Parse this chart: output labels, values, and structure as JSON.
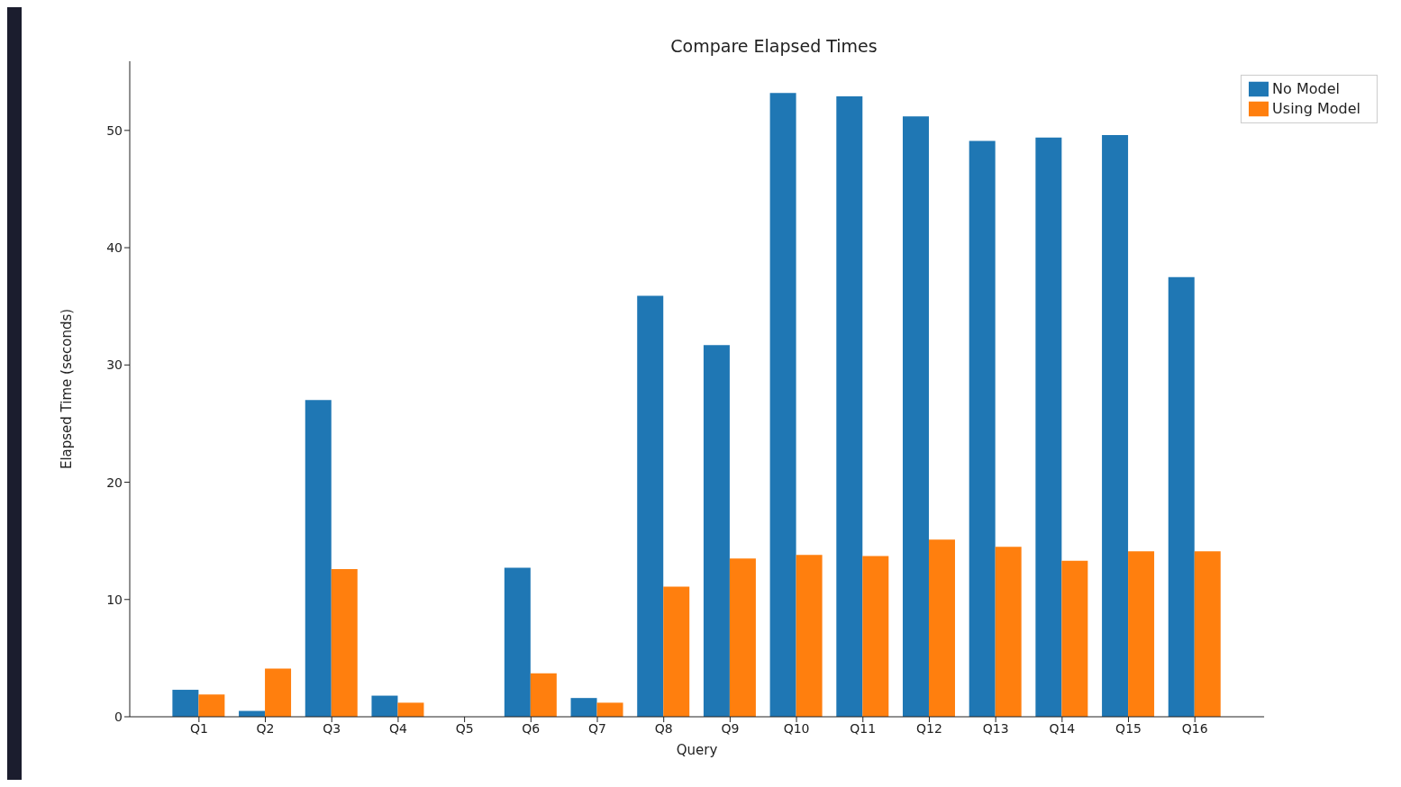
{
  "chart_data": {
    "type": "bar",
    "title": "Compare Elapsed Times",
    "xlabel": "Query",
    "ylabel": "Elapsed Time (seconds)",
    "categories": [
      "Q1",
      "Q2",
      "Q3",
      "Q4",
      "Q5",
      "Q6",
      "Q7",
      "Q8",
      "Q9",
      "Q10",
      "Q11",
      "Q12",
      "Q13",
      "Q14",
      "Q15",
      "Q16"
    ],
    "series": [
      {
        "name": "No Model",
        "color": "#1f77b4",
        "values": [
          2.3,
          0.5,
          27.0,
          1.8,
          0,
          12.7,
          1.6,
          35.9,
          31.7,
          53.2,
          52.9,
          51.2,
          49.1,
          49.4,
          49.6,
          37.5
        ]
      },
      {
        "name": "Using Model",
        "color": "#ff7f0e",
        "values": [
          1.9,
          4.1,
          12.6,
          1.2,
          0,
          3.7,
          1.2,
          11.1,
          13.5,
          13.8,
          13.7,
          15.1,
          14.5,
          13.3,
          14.1,
          14.1
        ]
      }
    ],
    "ylim": [
      0,
      55.9
    ],
    "yticks": [
      0,
      10,
      20,
      30,
      40,
      50
    ],
    "grid": false,
    "legend": "top right"
  }
}
